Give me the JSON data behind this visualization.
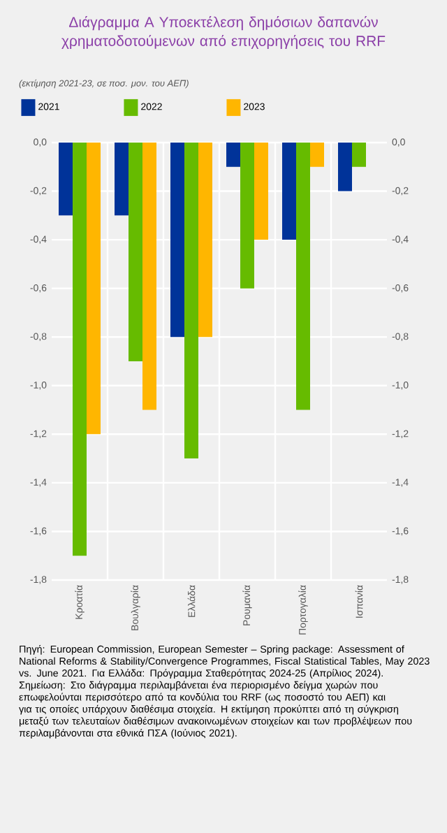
{
  "chart_data": {
    "type": "bar",
    "title": "Διάγραμμα Α Υποεκτέλεση δημόσιων δαπανών χρηματοδοτούμενων από επιχορηγήσεις του RRF",
    "subtitle": "(εκτίμηση 2021-23, σε ποσ. μον. του ΑΕΠ)",
    "categories": [
      "Κροατία",
      "Βουλγαρία",
      "Ελλάδα",
      "Ρουμανία",
      "Πορτογαλία",
      "Ισπανία"
    ],
    "series": [
      {
        "name": "2021",
        "color": "#003399",
        "values": [
          -0.3,
          -0.3,
          -0.8,
          -0.1,
          -0.4,
          -0.2
        ]
      },
      {
        "name": "2022",
        "color": "#66bb00",
        "values": [
          -1.7,
          -0.9,
          -1.3,
          -0.6,
          -1.1,
          -0.1
        ]
      },
      {
        "name": "2023",
        "color": "#ffb600",
        "values": [
          -1.2,
          -1.1,
          -0.8,
          -0.4,
          -0.1,
          null
        ]
      }
    ],
    "ylim": [
      -1.8,
      0
    ],
    "yticks": [
      {
        "value": -1.8,
        "label": "-1,8"
      },
      {
        "value": -1.6,
        "label": "-1,6"
      },
      {
        "value": -1.4,
        "label": "-1,4"
      },
      {
        "value": -1.2,
        "label": "-1,2"
      },
      {
        "value": -1.0,
        "label": "-1,0"
      },
      {
        "value": -0.8,
        "label": "-0,8"
      },
      {
        "value": -0.6,
        "label": "-0,6"
      },
      {
        "value": -0.4,
        "label": "-0,4"
      },
      {
        "value": -0.2,
        "label": "-0,2"
      },
      {
        "value": 0,
        "label": "0,0"
      }
    ],
    "y2lim": [
      -1.8,
      0
    ],
    "y2ticks": [
      {
        "value": -1.8,
        "label": "-1,8"
      },
      {
        "value": -1.6,
        "label": "-1,6"
      },
      {
        "value": -1.4,
        "label": "-1,4"
      },
      {
        "value": -1.2,
        "label": "-1,2"
      },
      {
        "value": -1.0,
        "label": "-1,0"
      },
      {
        "value": -0.8,
        "label": "-0,8"
      },
      {
        "value": -0.6,
        "label": "-0,6"
      },
      {
        "value": -0.4,
        "label": "-0,4"
      },
      {
        "value": -0.2,
        "label": "-0,2"
      },
      {
        "value": 0,
        "label": "0,0"
      }
    ],
    "grid": true,
    "legend": "top",
    "annotations": [
      "Πηγή: European Commission, European Semester – Spring package: Assessment of National Reforms & Stability/Convergence Programmes, Fiscal Statistical Tables, May 2023 vs. June 2021. Για Ελλάδα: Πρόγραμμα Σταθερότητας 2024-25 (Απρίλιος 2024).",
      "Σημείωση: Στο διάγραμμα περιλαμβάνεται ένα περιορισμένο δείγμα χωρών που επωφελούνται περισσότερο από τα κονδύλια του RRF (ως ποσοστό του ΑΕΠ) και για τις οποίες υπάρχουν διαθέσιμα στοιχεία. Η εκτίμηση προκύπτει από τη σύγκριση μεταξύ των τελευταίων διαθέσιμων ανακοινωμένων στοιχείων και των προβλέψεων που περιλαμβάνονται στα εθνικά ΠΣΑ (Ιούνιος 2021)."
    ]
  }
}
